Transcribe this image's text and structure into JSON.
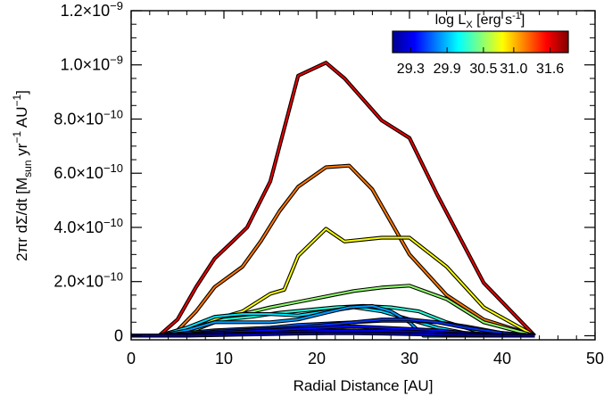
{
  "chart_data": {
    "type": "line",
    "xlabel": "Radial Distance [AU]",
    "ylabel": "2πr dΣ/dt [M_sun yr^-1 AU^-1]",
    "ylabel_parts": {
      "main": "2πr dΣ/dt [M",
      "sub": "sun",
      "mid": " yr",
      "sup1": "−1",
      "mid2": " AU",
      "sup2": "−1",
      "end": "]"
    },
    "xlim": [
      0,
      50
    ],
    "ylim": [
      -1.5e-11,
      1.2e-09
    ],
    "x_ticks": [
      {
        "value": 0,
        "label": "0"
      },
      {
        "value": 10,
        "label": "10"
      },
      {
        "value": 20,
        "label": "20"
      },
      {
        "value": 30,
        "label": "30"
      },
      {
        "value": 40,
        "label": "40"
      },
      {
        "value": 50,
        "label": "50"
      }
    ],
    "y_ticks": [
      {
        "value": 0,
        "mant": "0",
        "exp": ""
      },
      {
        "value": 2e-10,
        "mant": "2.0×10",
        "exp": "−10"
      },
      {
        "value": 4e-10,
        "mant": "4.0×10",
        "exp": "−10"
      },
      {
        "value": 6e-10,
        "mant": "6.0×10",
        "exp": "−10"
      },
      {
        "value": 8e-10,
        "mant": "8.0×10",
        "exp": "−10"
      },
      {
        "value": 1e-09,
        "mant": "1.0×10",
        "exp": "−9"
      },
      {
        "value": 1.2e-09,
        "mant": "1.2×10",
        "exp": "−9"
      }
    ],
    "colorbar": {
      "title_main": "log L",
      "title_sub": "X",
      "title_rest": " [erg s",
      "title_sup": "-1",
      "title_end": "]",
      "range": [
        29.0,
        31.9
      ],
      "tick_labels": [
        "29.3",
        "29.9",
        "30.5",
        "31.0",
        "31.6"
      ],
      "tick_values": [
        29.3,
        29.9,
        30.5,
        31.0,
        31.6
      ],
      "position": "top-right"
    },
    "series": [
      {
        "name": "log Lx 31.6",
        "logLx": 31.6,
        "x": [
          0,
          3,
          5,
          7,
          9,
          11,
          12.5,
          15,
          18,
          21,
          23,
          27,
          30,
          33,
          38,
          43.5
        ],
        "y": [
          0,
          0,
          6e-11,
          1.8e-10,
          2.85e-10,
          3.5e-10,
          4e-10,
          5.7e-10,
          9.6e-10,
          1.008e-09,
          9.5e-10,
          7.95e-10,
          7.3e-10,
          5.2e-10,
          1.95e-10,
          0
        ]
      },
      {
        "name": "log Lx 31.2",
        "logLx": 31.2,
        "x": [
          0,
          3,
          5,
          7,
          9,
          12,
          14,
          16,
          18,
          21,
          23.5,
          26,
          30,
          34,
          38,
          43.5
        ],
        "y": [
          0,
          0,
          2e-11,
          9e-11,
          1.8e-10,
          2.55e-10,
          3.5e-10,
          4.6e-10,
          5.5e-10,
          6.22e-10,
          6.28e-10,
          5.4e-10,
          3e-10,
          1.5e-10,
          6e-11,
          0
        ]
      },
      {
        "name": "log Lx 30.8",
        "logLx": 30.8,
        "x": [
          0,
          4,
          6,
          9,
          12,
          15,
          16.5,
          18,
          21,
          23,
          27,
          30,
          34,
          38,
          43.5
        ],
        "y": [
          0,
          0,
          1e-11,
          6e-11,
          9e-11,
          1.55e-10,
          1.7e-10,
          2.95e-10,
          3.95e-10,
          3.48e-10,
          3.62e-10,
          3.62e-10,
          2.55e-10,
          1.05e-10,
          0
        ]
      },
      {
        "name": "log Lx 30.5",
        "logLx": 30.5,
        "x": [
          0,
          4,
          6,
          9,
          12,
          15,
          18,
          21,
          24,
          27,
          30,
          34,
          38,
          43.5
        ],
        "y": [
          0,
          0,
          1e-11,
          5e-11,
          8e-11,
          1.05e-10,
          1.25e-10,
          1.45e-10,
          1.65e-10,
          1.78e-10,
          1.85e-10,
          1.35e-10,
          5e-11,
          0
        ]
      },
      {
        "name": "log Lx 30.2",
        "logLx": 30.2,
        "x": [
          0,
          4,
          7,
          10,
          13,
          16,
          19,
          22,
          25,
          28,
          31,
          34,
          38,
          43.5
        ],
        "y": [
          0,
          0,
          3e-11,
          6e-11,
          7e-11,
          8.5e-11,
          9.5e-11,
          1.05e-10,
          1.1e-10,
          1.05e-10,
          9e-11,
          5e-11,
          1e-11,
          0
        ]
      },
      {
        "name": "log Lx 30.0",
        "logLx": 30.0,
        "x": [
          0,
          3,
          6,
          9,
          12,
          15,
          18,
          21,
          24,
          27,
          30,
          33,
          36,
          40,
          43.5
        ],
        "y": [
          0,
          0,
          3e-11,
          7e-11,
          8e-11,
          8e-11,
          7.5e-11,
          9e-11,
          1.05e-10,
          9e-11,
          6e-11,
          3e-11,
          1e-11,
          0,
          0
        ]
      },
      {
        "name": "log Lx 29.8",
        "logLx": 29.8,
        "x": [
          0,
          3,
          6,
          9,
          12,
          15,
          18,
          21,
          23.5,
          26,
          28,
          30,
          31.5,
          34,
          38,
          43.5
        ],
        "y": [
          0,
          0,
          2e-11,
          5e-11,
          5e-11,
          5e-11,
          6e-11,
          8.5e-11,
          1.05e-10,
          1.1e-10,
          9e-11,
          5e-11,
          0,
          0,
          0,
          0
        ]
      },
      {
        "name": "log Lx 29.6",
        "logLx": 29.6,
        "x": [
          0,
          3,
          6,
          9,
          12,
          15,
          18,
          21,
          24,
          27,
          30,
          33,
          36,
          40,
          43.5
        ],
        "y": [
          0,
          0,
          1e-11,
          2e-11,
          2.5e-11,
          3e-11,
          4e-11,
          4.5e-11,
          5e-11,
          5.5e-11,
          5.5e-11,
          5e-11,
          3.5e-11,
          1e-11,
          0
        ]
      },
      {
        "name": "log Lx 29.5",
        "logLx": 29.5,
        "x": [
          0,
          3,
          6,
          9,
          12,
          15,
          18,
          21,
          24,
          27,
          30,
          33,
          36,
          40,
          43.5
        ],
        "y": [
          0,
          0,
          5e-12,
          1.5e-11,
          2e-11,
          2.5e-11,
          3e-11,
          4e-11,
          5e-11,
          6e-11,
          6e-11,
          5e-11,
          3e-11,
          1e-11,
          0
        ]
      },
      {
        "name": "log Lx 29.4",
        "logLx": 29.4,
        "x": [
          0,
          3,
          6,
          9,
          12,
          15,
          18,
          21,
          24,
          27,
          30,
          33,
          36,
          40,
          43.5
        ],
        "y": [
          0,
          0,
          5e-12,
          1e-11,
          1.5e-11,
          2e-11,
          2.5e-11,
          3e-11,
          3.5e-11,
          3e-11,
          2.5e-11,
          2e-11,
          1e-11,
          3e-12,
          0
        ]
      },
      {
        "name": "log Lx 29.3",
        "logLx": 29.3,
        "x": [
          0,
          3,
          6,
          9,
          12,
          15,
          18,
          21,
          24,
          27,
          30,
          33,
          36,
          40,
          43.5
        ],
        "y": [
          0,
          0,
          2e-12,
          5e-12,
          8e-12,
          1e-11,
          1.5e-11,
          1.8e-11,
          2e-11,
          1.8e-11,
          1.5e-11,
          1e-11,
          5e-12,
          0,
          0
        ]
      },
      {
        "name": "log Lx 29.1",
        "logLx": 29.1,
        "x": [
          0,
          3,
          6,
          9,
          12,
          15,
          18,
          21,
          24,
          27,
          30,
          33,
          36,
          40,
          43.5
        ],
        "y": [
          0,
          0,
          0,
          2e-12,
          4e-12,
          6e-12,
          8e-12,
          9e-12,
          9e-12,
          8e-12,
          6e-12,
          4e-12,
          2e-12,
          0,
          0
        ]
      }
    ]
  }
}
